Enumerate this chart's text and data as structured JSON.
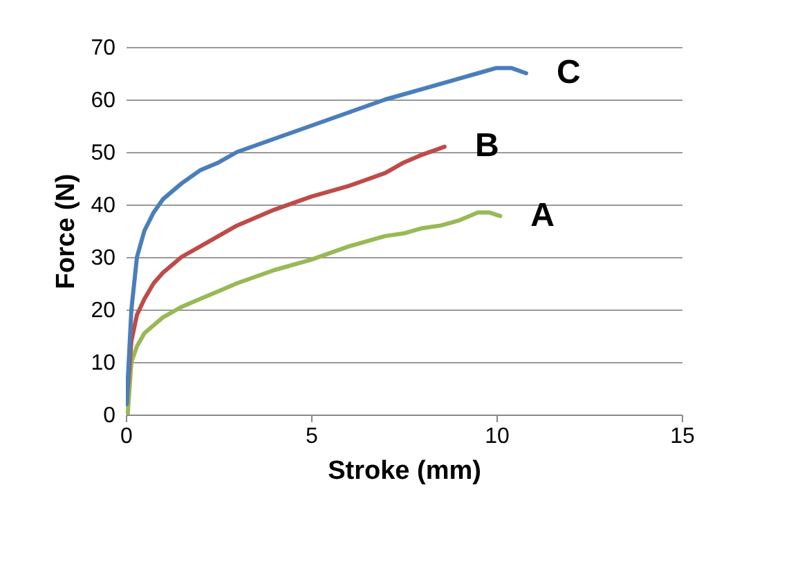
{
  "chart_data": {
    "type": "line",
    "xlabel": "Stroke (mm)",
    "ylabel": "Force (N)",
    "xlim": [
      0,
      15
    ],
    "xticks": [
      0,
      5,
      10,
      15
    ],
    "ylim": [
      0,
      70
    ],
    "yticks": [
      0,
      10,
      20,
      30,
      40,
      50,
      60,
      70
    ],
    "grid": "y",
    "legend": false,
    "series": [
      {
        "name": "A",
        "color": "#98b954",
        "x": [
          0.05,
          0.15,
          0.3,
          0.5,
          0.75,
          1,
          1.5,
          2,
          2.5,
          3,
          4,
          5,
          6,
          7,
          7.5,
          8,
          8.5,
          9,
          9.5,
          9.8,
          10.1
        ],
        "values": [
          0,
          10,
          13,
          15.5,
          17,
          18.5,
          20.5,
          22,
          23.5,
          25,
          27.5,
          29.5,
          32,
          34,
          34.5,
          35.5,
          36,
          37,
          38.5,
          38.5,
          37.8
        ]
      },
      {
        "name": "B",
        "color": "#be4b48",
        "x": [
          0.02,
          0.15,
          0.3,
          0.5,
          0.75,
          1,
          1.5,
          2,
          2.5,
          3,
          4,
          5,
          6,
          7,
          7.5,
          8,
          8.6
        ],
        "values": [
          2,
          14,
          19,
          22,
          25,
          27,
          30,
          32,
          34,
          36,
          39,
          41.5,
          43.5,
          46,
          48,
          49.5,
          51
        ]
      },
      {
        "name": "C",
        "color": "#4a7ebb",
        "x": [
          0.02,
          0.15,
          0.3,
          0.5,
          0.75,
          1,
          1.5,
          2,
          2.5,
          3,
          4,
          5,
          6,
          7,
          8,
          9,
          9.5,
          10,
          10.4,
          10.8
        ],
        "values": [
          2,
          20,
          30,
          35,
          38.5,
          41,
          44,
          46.5,
          48,
          50,
          52.5,
          55,
          57.5,
          60,
          62,
          64,
          65,
          66,
          66,
          65
        ]
      }
    ]
  }
}
